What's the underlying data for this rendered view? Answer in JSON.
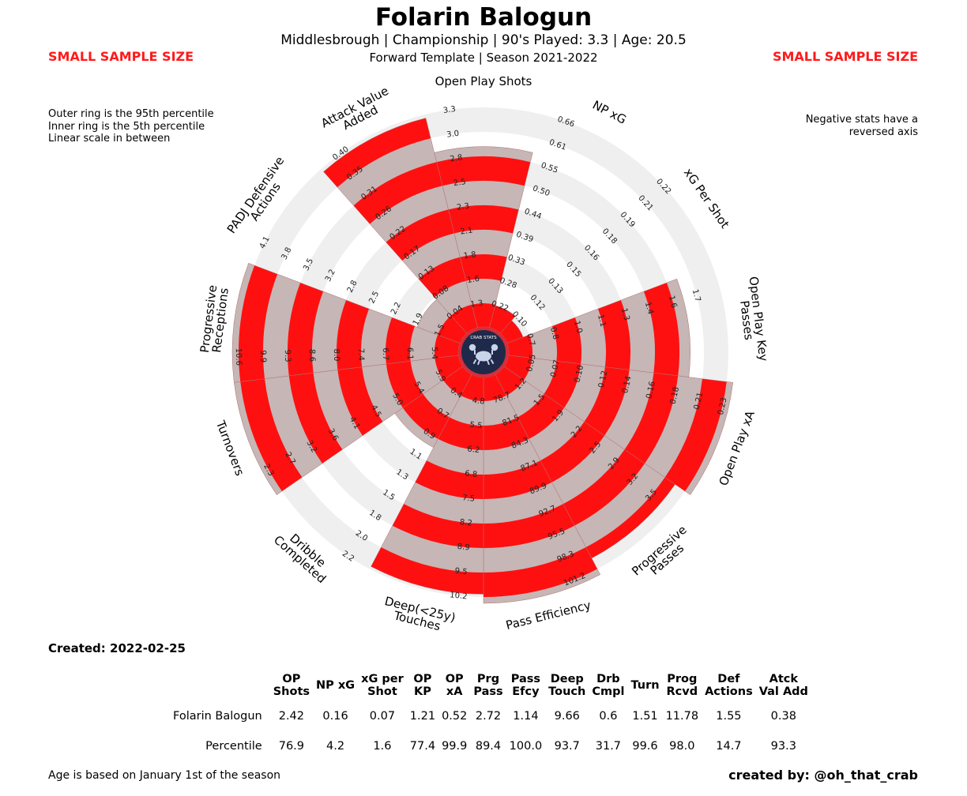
{
  "header": {
    "title": "Folarin Balogun",
    "subtitle1": "Middlesbrough  | Championship | 90's Played: 3.3 | Age: 20.5",
    "subtitle2": "Forward Template | Season 2021-2022",
    "warning_left": "SMALL SAMPLE SIZE",
    "warning_right": "SMALL SAMPLE SIZE",
    "note_left": [
      "Outer ring is the 95th percentile",
      "Inner ring is the 5th percentile",
      "Linear scale in between"
    ],
    "note_right": [
      "Negative stats have a",
      "reversed axis"
    ]
  },
  "footer": {
    "created": "Created: 2022-02-25",
    "age_note": "Age is based on January 1st of the season",
    "credit": "created by: @oh_that_crab"
  },
  "logo": {
    "text": "CRAB STATS",
    "icon": "crab-icon"
  },
  "colors": {
    "fill_red": "#ff1010",
    "fill_band": "#c6b6b6",
    "ring": "#efefef",
    "logo_bg": "#1f2a4a",
    "logo_ring": "#d32f3a"
  },
  "table": {
    "headers": [
      "OP\nShots",
      "NP xG",
      "xG per\nShot",
      "OP\nKP",
      "OP\nxA",
      "Prg\nPass",
      "Pass\nEfcy",
      "Deep\nTouch",
      "Drb\nCmpl",
      "Turn",
      "Prog\nRcvd",
      "Def\nActions",
      "Atck\nVal Add"
    ],
    "rows": [
      {
        "label": "Folarin Balogun",
        "values": [
          "2.42",
          "0.16",
          "0.07",
          "1.21",
          "0.52",
          "2.72",
          "1.14",
          "9.66",
          "0.6",
          "1.51",
          "11.78",
          "1.55",
          "0.38"
        ]
      },
      {
        "label": "Percentile",
        "values": [
          "76.9",
          "4.2",
          "1.6",
          "77.4",
          "99.9",
          "89.4",
          "100.0",
          "93.7",
          "31.7",
          "99.6",
          "98.0",
          "14.7",
          "93.3"
        ]
      }
    ]
  },
  "chart_data": {
    "type": "radar",
    "grid": false,
    "categories": [
      "Open Play Shots",
      "NP xG",
      "xG Per Shot",
      "Open Play Key Passes",
      "Open Play xA",
      "Progressive Passes",
      "Pass Efficiency",
      "Deep(<25y) Touches",
      "Dribble Completed",
      "Turnovers",
      "Progressive Receptions",
      "PADJ Defensive Actions",
      "Attack Value Added"
    ],
    "series": [
      {
        "values": [
          2.42,
          0.16,
          0.07,
          1.21,
          0.52,
          2.72,
          1.14,
          9.66,
          0.6,
          1.51,
          11.78,
          1.55,
          0.38
        ],
        "percentiles": [
          76.9,
          4.2,
          1.6,
          77.4,
          99.9,
          89.4,
          100.0,
          93.7,
          31.7,
          99.6,
          98.0,
          14.7,
          93.3
        ]
      }
    ],
    "axis_ticks": [
      [
        "1.3",
        "1.6",
        "1.8",
        "2.1",
        "2.3",
        "2.5",
        "2.8",
        "3.0",
        "3.3"
      ],
      [
        "0.22",
        "0.28",
        "0.33",
        "0.39",
        "0.44",
        "0.50",
        "0.55",
        "0.61",
        "0.66"
      ],
      [
        "0.10",
        "0.12",
        "0.13",
        "0.15",
        "0.16",
        "0.18",
        "0.19",
        "0.21",
        "0.22"
      ],
      [
        "0.7",
        "0.8",
        "1.0",
        "1.1",
        "1.3",
        "1.4",
        "1.6",
        "1.7"
      ],
      [
        "0.05",
        "0.07",
        "0.10",
        "0.12",
        "0.14",
        "0.16",
        "0.18",
        "0.21",
        "0.23"
      ],
      [
        "1.2",
        "1.5",
        "1.9",
        "2.2",
        "2.5",
        "2.9",
        "3.2",
        "3.5"
      ],
      [
        "78.7",
        "81.5",
        "84.3",
        "87.1",
        "89.9",
        "92.7",
        "95.5",
        "98.3",
        "101.2"
      ],
      [
        "4.8",
        "5.5",
        "6.2",
        "6.8",
        "7.5",
        "8.2",
        "8.9",
        "9.5",
        "10.2"
      ],
      [
        "0.4",
        "0.7",
        "0.9",
        "1.1",
        "1.3",
        "1.5",
        "1.8",
        "2.0",
        "2.2"
      ],
      [
        "5.9",
        "5.4",
        "5.0",
        "4.5",
        "4.1",
        "3.6",
        "3.2",
        "2.7",
        "2.3"
      ],
      [
        "5.4",
        "6.1",
        "6.7",
        "7.4",
        "8.0",
        "8.6",
        "9.3",
        "9.9",
        "10.6"
      ],
      [
        "1.5",
        "1.9",
        "2.2",
        "2.5",
        "2.8",
        "3.2",
        "3.5",
        "3.8",
        "4.1"
      ],
      [
        "0.04",
        "0.08",
        "0.13",
        "0.17",
        "0.22",
        "0.26",
        "0.31",
        "0.35",
        "0.40"
      ]
    ],
    "axis_labels": [
      [
        "Open Play Shots"
      ],
      [
        "NP xG"
      ],
      [
        "xG Per Shot"
      ],
      [
        "Open Play Key",
        "Passes"
      ],
      [
        "Open Play xA"
      ],
      [
        "Progressive",
        "Passes"
      ],
      [
        "Pass Efficiency"
      ],
      [
        "Deep(<25y)",
        "Touches"
      ],
      [
        "Dribble",
        "Completed"
      ],
      [
        "Turnovers"
      ],
      [
        "Progressive",
        "Receptions"
      ],
      [
        "PADJ Defensive",
        "Actions"
      ],
      [
        "Attack Value",
        "Added"
      ]
    ]
  }
}
